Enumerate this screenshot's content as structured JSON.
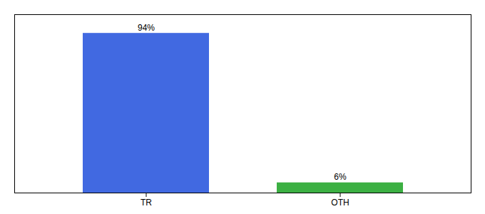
{
  "chart_data": {
    "type": "bar",
    "categories": [
      "TR",
      "OTH"
    ],
    "values": [
      94,
      6
    ],
    "value_labels": [
      "94%",
      "6%"
    ],
    "colors": [
      "#4169e1",
      "#3cb043"
    ],
    "ylim": [
      0,
      105
    ],
    "data_labels": true,
    "tick_labels": "x",
    "grid": false
  }
}
